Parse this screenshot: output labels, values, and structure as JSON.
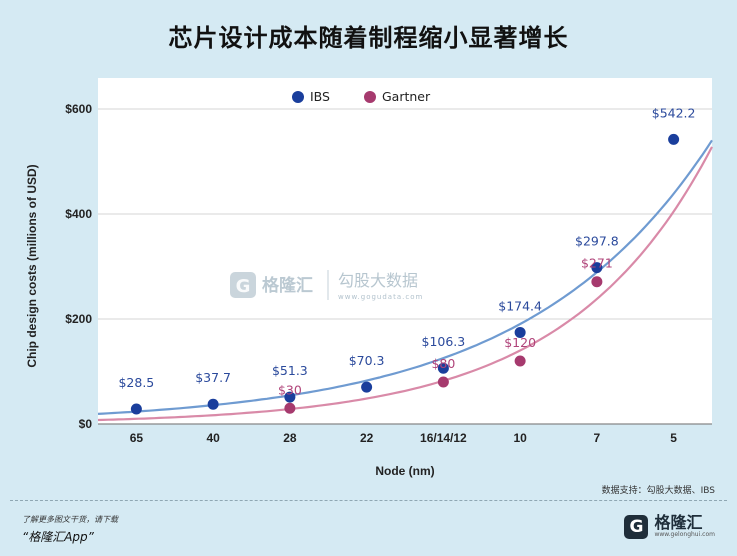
{
  "title": "芯片设计成本随着制程缩小显著增长",
  "chart_data": {
    "type": "scatter",
    "categories": [
      "65",
      "40",
      "28",
      "22",
      "16/14/12",
      "10",
      "7",
      "5"
    ],
    "xlabel": "Node (nm)",
    "ylabel": "Chip design costs (millions of USD)",
    "ylim": [
      0,
      600
    ],
    "yticks": [
      0,
      200,
      400,
      600
    ],
    "ytick_labels": [
      "$0",
      "$200",
      "$400",
      "$600"
    ],
    "grid": true,
    "legend_position": "top-left",
    "series": [
      {
        "name": "IBS",
        "color": "#1a3e9c",
        "values": [
          28.5,
          37.7,
          51.3,
          70.3,
          106.3,
          174.4,
          297.8,
          542.2
        ],
        "labels": [
          "$28.5",
          "$37.7",
          "$51.3",
          "$70.3",
          "$106.3",
          "$174.4",
          "$297.8",
          "$542.2"
        ],
        "label_color": "#2b4a9c",
        "trend_color": "#6f9bd1"
      },
      {
        "name": "Gartner",
        "color": "#a63a6e",
        "values": [
          null,
          null,
          30,
          null,
          80,
          120,
          271,
          null
        ],
        "labels": [
          null,
          null,
          "$30",
          null,
          "$80",
          "$120",
          "$271",
          null
        ],
        "label_color": "#b0447a",
        "trend_color": "#d98aa8"
      }
    ]
  },
  "watermark": {
    "mark": "G",
    "brand": "格隆汇",
    "sub": "勾股大数据",
    "domain": "www.gogudata.com"
  },
  "source_note": "数据支持：勾股大数据、IBS",
  "footer": {
    "hint": "了解更多图文干货，请下载",
    "app": "“格隆汇App”",
    "logo_mark": "G",
    "logo_name": "格隆汇",
    "logo_domain": "www.gelonghui.com"
  }
}
